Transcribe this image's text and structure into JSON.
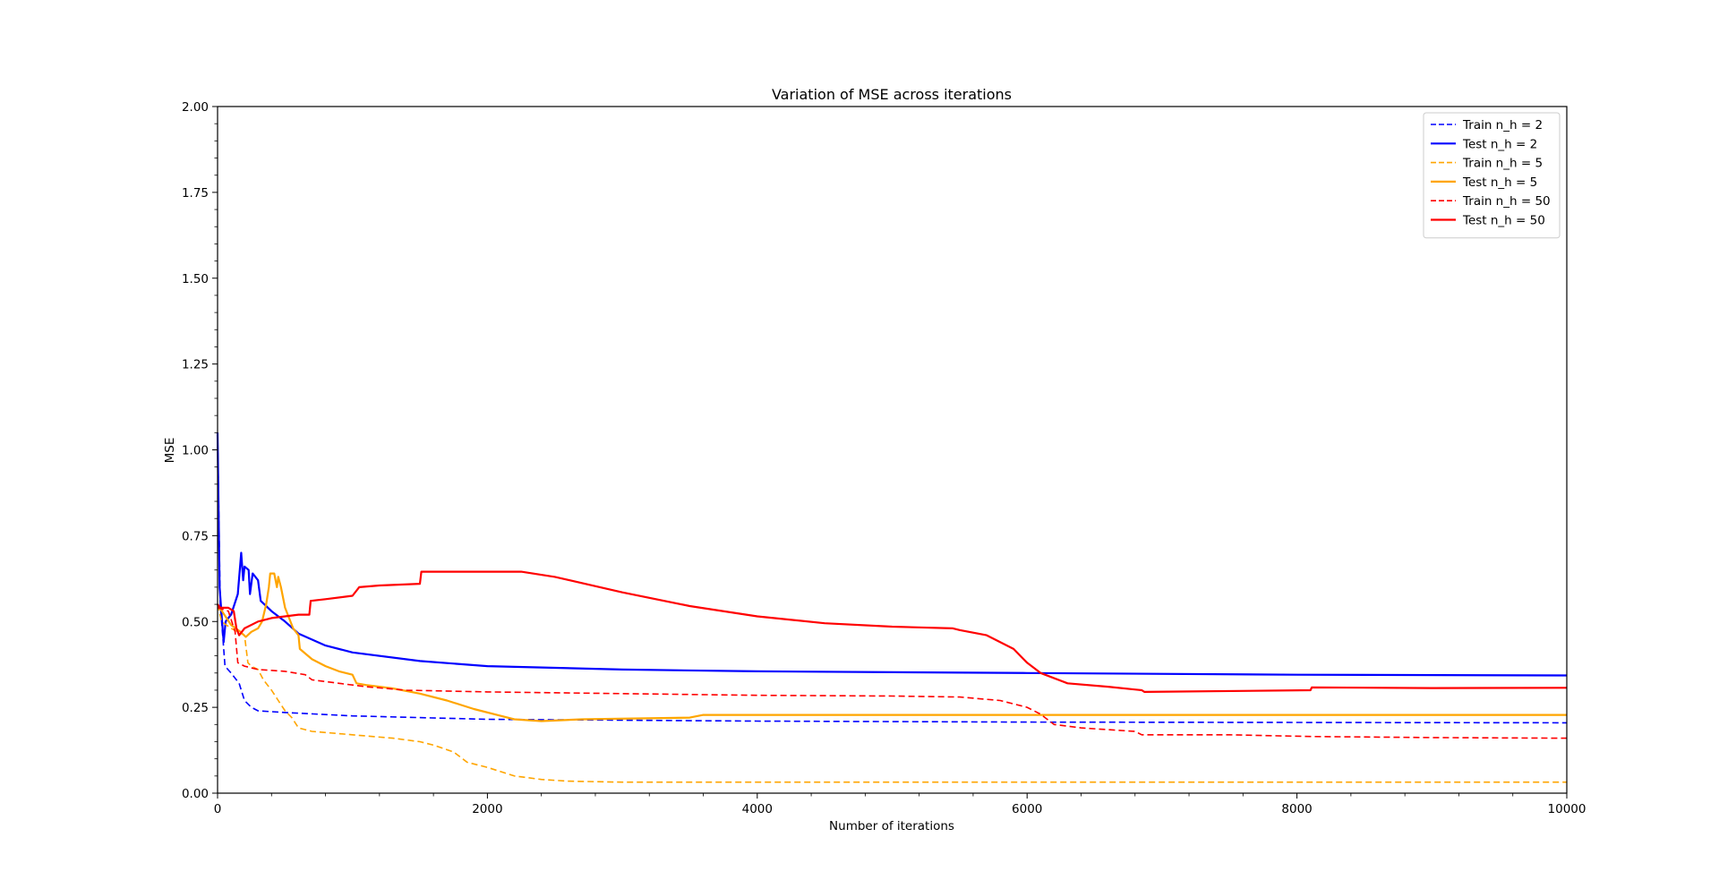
{
  "chart_data": {
    "type": "line",
    "title": "Variation of MSE across iterations",
    "xlabel": "Number of iterations",
    "ylabel": "MSE",
    "xlim": [
      0,
      10000
    ],
    "ylim": [
      0,
      2.0
    ],
    "xticks": [
      0,
      2000,
      4000,
      6000,
      8000,
      10000
    ],
    "xtick_labels": [
      "0",
      "2000",
      "4000",
      "6000",
      "8000",
      "10000"
    ],
    "yticks": [
      0,
      0.25,
      0.5,
      0.75,
      1.0,
      1.25,
      1.5,
      1.75,
      2.0
    ],
    "ytick_labels": [
      "0.00",
      "0.25",
      "0.50",
      "0.75",
      "1.00",
      "1.25",
      "1.50",
      "1.75",
      "2.00"
    ],
    "grid": false,
    "legend_position": "top-right",
    "series": [
      {
        "name": "Train n_h = 2",
        "color": "#0000ff",
        "style": "dashed",
        "points": [
          [
            0,
            1.05
          ],
          [
            20,
            0.55
          ],
          [
            40,
            0.45
          ],
          [
            55,
            0.37
          ],
          [
            100,
            0.35
          ],
          [
            160,
            0.32
          ],
          [
            200,
            0.27
          ],
          [
            250,
            0.25
          ],
          [
            300,
            0.24
          ],
          [
            500,
            0.235
          ],
          [
            1000,
            0.225
          ],
          [
            2000,
            0.215
          ],
          [
            4000,
            0.21
          ],
          [
            6000,
            0.207
          ],
          [
            8000,
            0.206
          ],
          [
            10000,
            0.205
          ]
        ]
      },
      {
        "name": "Test n_h = 2",
        "color": "#0000ff",
        "style": "solid",
        "points": [
          [
            0,
            1.05
          ],
          [
            15,
            0.6
          ],
          [
            30,
            0.52
          ],
          [
            45,
            0.44
          ],
          [
            60,
            0.5
          ],
          [
            100,
            0.52
          ],
          [
            150,
            0.58
          ],
          [
            175,
            0.7
          ],
          [
            190,
            0.62
          ],
          [
            200,
            0.66
          ],
          [
            230,
            0.65
          ],
          [
            240,
            0.58
          ],
          [
            260,
            0.64
          ],
          [
            300,
            0.62
          ],
          [
            320,
            0.56
          ],
          [
            400,
            0.53
          ],
          [
            500,
            0.5
          ],
          [
            600,
            0.465
          ],
          [
            800,
            0.43
          ],
          [
            1000,
            0.41
          ],
          [
            1500,
            0.385
          ],
          [
            2000,
            0.37
          ],
          [
            3000,
            0.36
          ],
          [
            4000,
            0.355
          ],
          [
            6000,
            0.35
          ],
          [
            8000,
            0.345
          ],
          [
            10000,
            0.343
          ]
        ]
      },
      {
        "name": "Train n_h = 5",
        "color": "#ffa500",
        "style": "dashed",
        "points": [
          [
            0,
            0.55
          ],
          [
            30,
            0.5
          ],
          [
            100,
            0.48
          ],
          [
            200,
            0.46
          ],
          [
            225,
            0.38
          ],
          [
            250,
            0.37
          ],
          [
            300,
            0.36
          ],
          [
            340,
            0.33
          ],
          [
            400,
            0.3
          ],
          [
            450,
            0.27
          ],
          [
            500,
            0.24
          ],
          [
            550,
            0.22
          ],
          [
            600,
            0.19
          ],
          [
            700,
            0.18
          ],
          [
            1000,
            0.17
          ],
          [
            1300,
            0.16
          ],
          [
            1500,
            0.15
          ],
          [
            1600,
            0.14
          ],
          [
            1750,
            0.12
          ],
          [
            1850,
            0.09
          ],
          [
            2000,
            0.075
          ],
          [
            2200,
            0.05
          ],
          [
            2400,
            0.04
          ],
          [
            2600,
            0.035
          ],
          [
            3000,
            0.032
          ],
          [
            5000,
            0.032
          ],
          [
            10000,
            0.032
          ]
        ]
      },
      {
        "name": "Test n_h = 5",
        "color": "#ffa500",
        "style": "solid",
        "points": [
          [
            0,
            0.55
          ],
          [
            50,
            0.52
          ],
          [
            100,
            0.49
          ],
          [
            170,
            0.47
          ],
          [
            210,
            0.455
          ],
          [
            250,
            0.47
          ],
          [
            300,
            0.48
          ],
          [
            330,
            0.5
          ],
          [
            360,
            0.55
          ],
          [
            380,
            0.6
          ],
          [
            390,
            0.64
          ],
          [
            420,
            0.64
          ],
          [
            440,
            0.6
          ],
          [
            450,
            0.63
          ],
          [
            470,
            0.6
          ],
          [
            500,
            0.54
          ],
          [
            560,
            0.48
          ],
          [
            600,
            0.46
          ],
          [
            610,
            0.42
          ],
          [
            700,
            0.39
          ],
          [
            800,
            0.37
          ],
          [
            900,
            0.355
          ],
          [
            1000,
            0.345
          ],
          [
            1030,
            0.32
          ],
          [
            1100,
            0.315
          ],
          [
            1300,
            0.305
          ],
          [
            1500,
            0.29
          ],
          [
            1700,
            0.27
          ],
          [
            1900,
            0.245
          ],
          [
            2100,
            0.225
          ],
          [
            2200,
            0.215
          ],
          [
            2400,
            0.21
          ],
          [
            2700,
            0.215
          ],
          [
            3500,
            0.22
          ],
          [
            3600,
            0.228
          ],
          [
            5000,
            0.228
          ],
          [
            8000,
            0.228
          ],
          [
            10000,
            0.228
          ]
        ]
      },
      {
        "name": "Train n_h = 50",
        "color": "#ff0000",
        "style": "dashed",
        "points": [
          [
            0,
            0.54
          ],
          [
            80,
            0.53
          ],
          [
            130,
            0.47
          ],
          [
            150,
            0.38
          ],
          [
            200,
            0.37
          ],
          [
            300,
            0.36
          ],
          [
            500,
            0.355
          ],
          [
            650,
            0.345
          ],
          [
            700,
            0.33
          ],
          [
            900,
            0.32
          ],
          [
            1100,
            0.31
          ],
          [
            1400,
            0.3
          ],
          [
            2000,
            0.295
          ],
          [
            3000,
            0.29
          ],
          [
            4000,
            0.285
          ],
          [
            5000,
            0.283
          ],
          [
            5500,
            0.28
          ],
          [
            5800,
            0.27
          ],
          [
            6000,
            0.25
          ],
          [
            6100,
            0.23
          ],
          [
            6200,
            0.2
          ],
          [
            6400,
            0.19
          ],
          [
            6800,
            0.18
          ],
          [
            6850,
            0.17
          ],
          [
            7500,
            0.17
          ],
          [
            8100,
            0.165
          ],
          [
            9000,
            0.162
          ],
          [
            10000,
            0.16
          ]
        ]
      },
      {
        "name": "Test n_h = 50",
        "color": "#ff0000",
        "style": "solid",
        "points": [
          [
            0,
            0.55
          ],
          [
            20,
            0.54
          ],
          [
            80,
            0.54
          ],
          [
            120,
            0.53
          ],
          [
            140,
            0.48
          ],
          [
            160,
            0.46
          ],
          [
            200,
            0.48
          ],
          [
            300,
            0.5
          ],
          [
            400,
            0.51
          ],
          [
            500,
            0.515
          ],
          [
            600,
            0.52
          ],
          [
            680,
            0.52
          ],
          [
            690,
            0.56
          ],
          [
            800,
            0.565
          ],
          [
            1000,
            0.575
          ],
          [
            1050,
            0.6
          ],
          [
            1200,
            0.605
          ],
          [
            1500,
            0.61
          ],
          [
            1510,
            0.645
          ],
          [
            2000,
            0.645
          ],
          [
            2250,
            0.645
          ],
          [
            2500,
            0.63
          ],
          [
            3000,
            0.585
          ],
          [
            3500,
            0.545
          ],
          [
            4000,
            0.515
          ],
          [
            4500,
            0.495
          ],
          [
            5000,
            0.485
          ],
          [
            5450,
            0.48
          ],
          [
            5500,
            0.475
          ],
          [
            5700,
            0.46
          ],
          [
            5900,
            0.42
          ],
          [
            6000,
            0.38
          ],
          [
            6100,
            0.35
          ],
          [
            6300,
            0.32
          ],
          [
            6600,
            0.31
          ],
          [
            6850,
            0.3
          ],
          [
            6870,
            0.295
          ],
          [
            8100,
            0.3
          ],
          [
            8110,
            0.308
          ],
          [
            9000,
            0.306
          ],
          [
            10000,
            0.307
          ]
        ]
      }
    ]
  }
}
